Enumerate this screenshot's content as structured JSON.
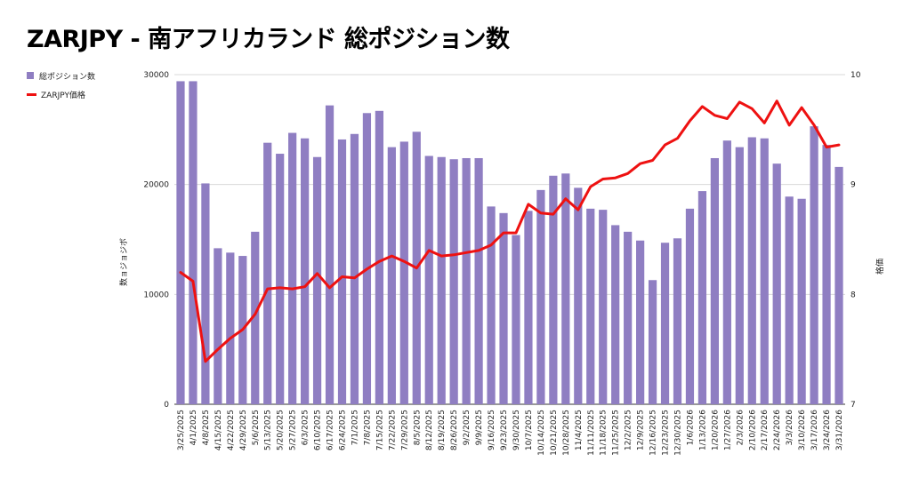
{
  "chart_data": {
    "type": "bar",
    "title": "ZARJPY - 南アフリカランド 総ポジション数",
    "ylabel": "数ョジョジボ",
    "y2label": "格価",
    "ylim": [
      0,
      30000
    ],
    "y2lim": [
      7,
      10
    ],
    "yticks": [
      "0",
      "10000",
      "20000",
      "30000"
    ],
    "y2ticks": [
      "7",
      "8",
      "9",
      "10"
    ],
    "grid": true,
    "legend_position": "top-left",
    "colors": {
      "bars": "#8f7ec2",
      "line": "#ee1111"
    },
    "categories": [
      "3/25/2025",
      "4/1/2025",
      "4/8/2025",
      "4/15/2025",
      "4/22/2025",
      "4/29/2025",
      "5/6/2025",
      "5/13/2025",
      "5/20/2025",
      "5/27/2025",
      "6/3/2025",
      "6/10/2025",
      "6/17/2025",
      "6/24/2025",
      "7/1/2025",
      "7/8/2025",
      "7/15/2025",
      "7/22/2025",
      "7/29/2025",
      "8/5/2025",
      "8/12/2025",
      "8/19/2025",
      "8/26/2025",
      "9/2/2025",
      "9/9/2025",
      "9/16/2025",
      "9/23/2025",
      "9/30/2025",
      "10/7/2025",
      "10/14/2025",
      "10/21/2025",
      "10/28/2025",
      "11/4/2025",
      "11/11/2025",
      "11/18/2025",
      "11/25/2025",
      "12/2/2025",
      "12/9/2025",
      "12/16/2025",
      "12/23/2025",
      "12/30/2025",
      "1/6/2026",
      "1/13/2026",
      "1/20/2026",
      "1/27/2026",
      "2/3/2026",
      "2/10/2026",
      "2/17/2026",
      "2/24/2026",
      "3/3/2026",
      "3/10/2026",
      "3/17/2026",
      "3/24/2026",
      "3/31/2026"
    ],
    "series": [
      {
        "name": "総ポジション数",
        "type": "bar",
        "axis": "left",
        "values": [
          29400,
          29400,
          20100,
          14200,
          13800,
          13500,
          15700,
          23800,
          22800,
          24700,
          24200,
          22500,
          27200,
          24100,
          24600,
          26500,
          26700,
          23400,
          23900,
          24800,
          22600,
          22500,
          22300,
          22400,
          22400,
          18000,
          17400,
          15400,
          17600,
          19500,
          20800,
          21000,
          19700,
          17800,
          17700,
          16300,
          15700,
          14900,
          11300,
          14700,
          15100,
          17800,
          19400,
          22400,
          24000,
          23400,
          24300,
          24200,
          21900,
          18900,
          18700,
          25300,
          23600,
          21600
        ]
      },
      {
        "name": "ZARJPY価格",
        "type": "line",
        "axis": "right",
        "values": [
          8.2,
          8.12,
          7.39,
          7.5,
          7.6,
          7.68,
          7.82,
          8.05,
          8.06,
          8.05,
          8.07,
          8.19,
          8.06,
          8.16,
          8.15,
          8.23,
          8.3,
          8.35,
          8.3,
          8.24,
          8.4,
          8.35,
          8.36,
          8.38,
          8.4,
          8.45,
          8.56,
          8.56,
          8.82,
          8.74,
          8.73,
          8.87,
          8.77,
          8.98,
          9.05,
          9.06,
          9.1,
          9.19,
          9.22,
          9.36,
          9.42,
          9.58,
          9.71,
          9.63,
          9.6,
          9.75,
          9.69,
          9.56,
          9.76,
          9.54,
          9.7,
          9.54,
          9.34,
          9.36
        ]
      }
    ]
  }
}
